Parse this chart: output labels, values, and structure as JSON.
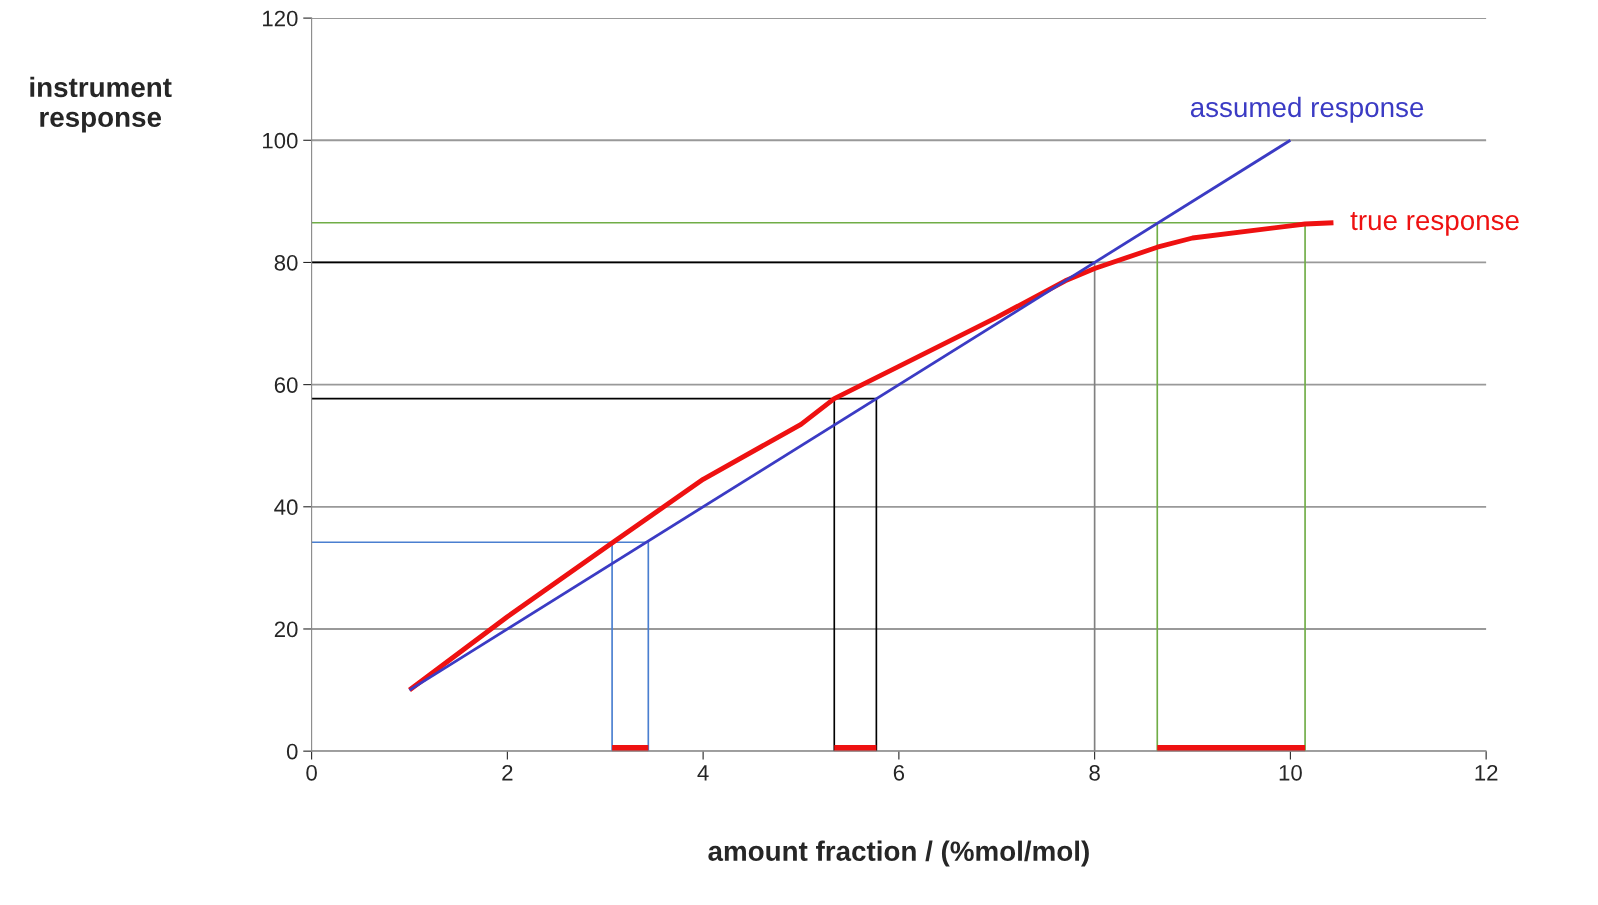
{
  "chart_data": {
    "type": "line",
    "xlabel": "amount fraction / (%mol/mol)",
    "ylabel": "instrument\nresponse",
    "xlim": [
      0,
      12
    ],
    "xticks": [
      0,
      2,
      4,
      6,
      8,
      10,
      12
    ],
    "ylim": [
      0,
      120
    ],
    "yticks": [
      0,
      20,
      40,
      60,
      80,
      100,
      120
    ],
    "grid": "y",
    "marker": "none",
    "series": [
      {
        "name": "assumed response",
        "color": "#3b3bc4",
        "x": [
          1,
          10
        ],
        "values": [
          10,
          100
        ]
      },
      {
        "name": "true response",
        "color": "#ee1111",
        "x": [
          1,
          2,
          3.08,
          4,
          5,
          5.34,
          6,
          7,
          7.7,
          8,
          8.64,
          9,
          10,
          10.15,
          10.44
        ],
        "values": [
          10,
          22,
          34.2,
          44.5,
          53.5,
          57.7,
          63,
          71,
          77,
          79,
          82.5,
          84,
          86,
          86.3,
          86.5
        ]
      },
      {
        "color": "#4a7fd0",
        "x": [
          0,
          3.44,
          3.44
        ],
        "values": [
          34.2,
          34.2,
          0
        ]
      },
      {
        "color": "#4a7fd0",
        "x": [
          3.07,
          3.07
        ],
        "values": [
          34.2,
          0
        ]
      },
      {
        "color": "#000000",
        "x": [
          0,
          5.77,
          5.77
        ],
        "values": [
          57.7,
          57.7,
          0
        ]
      },
      {
        "color": "#000000",
        "x": [
          5.34,
          5.34
        ],
        "values": [
          57.7,
          0
        ]
      },
      {
        "color": "#000000",
        "x": [
          8,
          0
        ],
        "values": [
          80,
          80
        ]
      },
      {
        "color": "#808080",
        "x": [
          8,
          8
        ],
        "values": [
          0,
          80
        ]
      },
      {
        "color": "#70ad47",
        "x": [
          0,
          10.15,
          10.15
        ],
        "values": [
          86.5,
          86.5,
          0
        ]
      },
      {
        "color": "#70ad47",
        "x": [
          8.64,
          8.64
        ],
        "values": [
          86.5,
          0
        ]
      },
      {
        "color": "#ee1111",
        "x": [
          3.07,
          3.44
        ],
        "values": [
          0,
          0
        ]
      },
      {
        "color": "#ee1111",
        "x": [
          5.34,
          5.77
        ],
        "values": [
          0,
          0
        ]
      },
      {
        "color": "#ee1111",
        "x": [
          8.64,
          10.15
        ],
        "values": [
          0,
          0
        ]
      }
    ]
  }
}
